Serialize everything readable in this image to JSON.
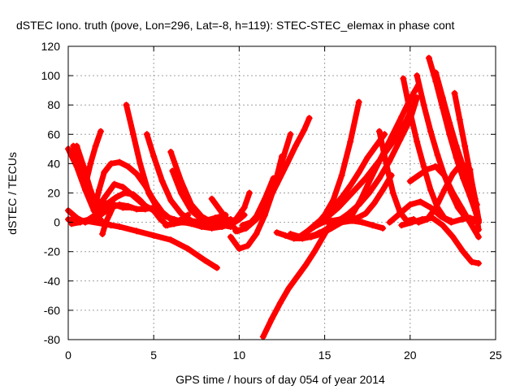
{
  "chart_data": {
    "type": "scatter",
    "title": "dSTEC Iono. truth (pove, Lon=296, Lat=-8, h=119): STEC-STEC_elemax in phase cont",
    "xlabel": "GPS time / hours of day 054 of year 2014",
    "ylabel": "dSTEC  / TECUs",
    "xlim": [
      0,
      25
    ],
    "ylim": [
      -80,
      120
    ],
    "xticks": [
      0,
      5,
      10,
      15,
      20,
      25
    ],
    "yticks": [
      -80,
      -60,
      -40,
      -20,
      0,
      20,
      40,
      60,
      80,
      100,
      120
    ],
    "grid": true,
    "marker": "plus",
    "color": "#ff0000",
    "series": [
      {
        "x": [
          0.0,
          0.5,
          1.0,
          1.5,
          2.0,
          2.5
        ],
        "y": [
          50,
          38,
          22,
          8,
          0,
          -2
        ]
      },
      {
        "x": [
          0.2,
          0.7,
          1.2,
          1.7,
          2.2,
          2.8,
          3.3,
          3.8,
          4.2,
          4.6
        ],
        "y": [
          -1,
          0,
          2,
          6,
          12,
          17,
          20,
          19,
          15,
          10
        ]
      },
      {
        "x": [
          0.3,
          0.6,
          0.9,
          1.2,
          1.5,
          1.8,
          2.2,
          2.7,
          3.2,
          3.7
        ],
        "y": [
          52,
          40,
          28,
          20,
          15,
          14,
          13,
          12,
          10,
          10
        ]
      },
      {
        "x": [
          0.0,
          0.5,
          1.0,
          1.5,
          2.0,
          2.5,
          3.0,
          3.5,
          4.0,
          4.5,
          5.0
        ],
        "y": [
          8,
          3,
          0,
          2,
          6,
          10,
          12,
          11,
          9,
          9,
          10
        ]
      },
      {
        "x": [
          0.0,
          1.0,
          2.0,
          3.0,
          4.0,
          5.0,
          6.0,
          7.0,
          8.0,
          8.7
        ],
        "y": [
          2,
          1,
          -1,
          -3,
          -6,
          -9,
          -12,
          -18,
          -26,
          -31
        ]
      },
      {
        "x": [
          0.5,
          0.9,
          1.3,
          1.7,
          2.2,
          2.7,
          3.2,
          3.8,
          4.4,
          5.0
        ],
        "y": [
          52,
          38,
          22,
          10,
          18,
          26,
          24,
          18,
          12,
          8
        ]
      },
      {
        "x": [
          1.0,
          1.3,
          1.6,
          1.9
        ],
        "y": [
          25,
          40,
          52,
          62
        ]
      },
      {
        "x": [
          1.5,
          1.8,
          2.1,
          2.5,
          3.0,
          3.5,
          4.0,
          4.5,
          5.0,
          5.5,
          6.0,
          6.5
        ],
        "y": [
          8,
          22,
          34,
          40,
          41,
          38,
          33,
          25,
          15,
          7,
          2,
          0
        ]
      },
      {
        "x": [
          2.0,
          2.2,
          2.4,
          2.6
        ],
        "y": [
          -8,
          0,
          5,
          10
        ]
      },
      {
        "x": [
          3.4,
          3.8,
          4.2,
          4.7,
          5.2,
          5.7,
          6.2,
          6.8,
          7.4,
          8.0,
          8.6,
          9.2
        ],
        "y": [
          80,
          60,
          40,
          20,
          10,
          4,
          2,
          0,
          0,
          1,
          3,
          5
        ]
      },
      {
        "x": [
          4.6,
          5.0,
          5.5,
          6.0,
          6.6,
          7.2,
          7.8,
          8.4,
          9.0,
          9.5
        ],
        "y": [
          60,
          45,
          28,
          15,
          6,
          1,
          0,
          0,
          1,
          2
        ]
      },
      {
        "x": [
          5.0,
          5.4,
          5.8,
          6.2,
          6.6,
          7.0
        ],
        "y": [
          8,
          2,
          -2,
          -1,
          2,
          5
        ]
      },
      {
        "x": [
          6.0,
          6.6,
          7.2,
          7.8,
          8.4,
          9.0,
          9.5
        ],
        "y": [
          48,
          28,
          12,
          4,
          0,
          -2,
          -3
        ]
      },
      {
        "x": [
          5.7,
          6.2,
          6.7,
          7.2,
          7.8,
          8.4,
          9.0,
          9.6,
          10.0,
          10.3
        ],
        "y": [
          -2,
          -1,
          0,
          -1,
          -3,
          -4,
          -3,
          -1,
          2,
          5
        ]
      },
      {
        "x": [
          6.1,
          6.6,
          7.2,
          7.8,
          8.5,
          9.2,
          9.8,
          10.3,
          10.6
        ],
        "y": [
          35,
          20,
          8,
          2,
          -1,
          -1,
          2,
          10,
          20
        ]
      },
      {
        "x": [
          8.4,
          8.9,
          9.4,
          9.9,
          10.4,
          11.0,
          11.5,
          12.0
        ],
        "y": [
          16,
          8,
          0,
          -6,
          -4,
          4,
          16,
          30
        ]
      },
      {
        "x": [
          9.5,
          10.0,
          10.5,
          11.0,
          11.5,
          12.0,
          12.5
        ],
        "y": [
          -10,
          -18,
          -16,
          -8,
          5,
          22,
          45
        ]
      },
      {
        "x": [
          10.2,
          10.7,
          11.2,
          11.7,
          12.2,
          12.6,
          13.0
        ],
        "y": [
          -2,
          0,
          6,
          16,
          30,
          45,
          60
        ]
      },
      {
        "x": [
          9.8,
          10.4,
          11.0,
          11.6,
          12.2,
          12.8,
          13.3,
          13.8,
          14.1
        ],
        "y": [
          -6,
          -4,
          2,
          12,
          26,
          40,
          52,
          63,
          71
        ]
      },
      {
        "x": [
          11.4,
          11.9,
          12.4,
          12.9,
          13.4,
          13.9,
          14.4,
          14.9,
          15.3
        ],
        "y": [
          -78,
          -66,
          -55,
          -45,
          -37,
          -29,
          -20,
          -10,
          -2
        ]
      },
      {
        "x": [
          12.2,
          12.7,
          13.2,
          13.7,
          14.2,
          14.7
        ],
        "y": [
          -7,
          -9,
          -11,
          -11,
          -10,
          -7
        ]
      },
      {
        "x": [
          13.0,
          13.6,
          14.2,
          14.8,
          15.4,
          16.0,
          16.6,
          17.2,
          17.8,
          18.4
        ],
        "y": [
          -8,
          -10,
          -10,
          -8,
          -4,
          0,
          1,
          0,
          -2,
          -4
        ]
      },
      {
        "x": [
          14.5,
          15.0,
          15.5,
          16.0,
          16.5,
          17.0
        ],
        "y": [
          -2,
          5,
          15,
          32,
          55,
          82
        ]
      },
      {
        "x": [
          13.9,
          14.4,
          14.9,
          15.4,
          15.9,
          16.4,
          16.9,
          17.4,
          17.9,
          18.4,
          18.9
        ],
        "y": [
          -7,
          -3,
          0,
          1,
          2,
          2,
          3,
          6,
          13,
          22,
          32
        ]
      },
      {
        "x": [
          14.0,
          14.6,
          15.2,
          15.8,
          16.4,
          17.0,
          17.6,
          18.2,
          18.8,
          19.4,
          20.0,
          20.4
        ],
        "y": [
          -10,
          -8,
          -4,
          1,
          6,
          12,
          20,
          30,
          42,
          56,
          70,
          85
        ]
      },
      {
        "x": [
          13.5,
          14.0,
          14.5,
          15.0,
          15.5,
          16.0,
          16.5,
          17.0,
          17.5,
          18.0,
          18.5
        ],
        "y": [
          -10,
          -6,
          -1,
          4,
          10,
          17,
          25,
          34,
          44,
          52,
          60
        ]
      },
      {
        "x": [
          15.0,
          15.8,
          16.6,
          17.4,
          18.2,
          19.0,
          19.8,
          20.4
        ],
        "y": [
          2,
          10,
          20,
          30,
          42,
          55,
          70,
          85
        ]
      },
      {
        "x": [
          16.5,
          17.1,
          17.7,
          18.3,
          18.9,
          19.5,
          20.0,
          20.5
        ],
        "y": [
          3,
          15,
          30,
          44,
          58,
          72,
          84,
          94
        ]
      },
      {
        "x": [
          18.2,
          18.6,
          19.0,
          19.4,
          19.8,
          20.2
        ],
        "y": [
          62,
          40,
          20,
          7,
          1,
          2
        ]
      },
      {
        "x": [
          19.6,
          20.0,
          20.4,
          20.8,
          21.2,
          21.6,
          22.0,
          22.4
        ],
        "y": [
          98,
          75,
          55,
          38,
          22,
          10,
          3,
          1
        ]
      },
      {
        "x": [
          20.4,
          20.8,
          21.2,
          21.6,
          22.0,
          22.4,
          22.8,
          23.2,
          23.6,
          24.0
        ],
        "y": [
          100,
          80,
          62,
          46,
          32,
          20,
          10,
          4,
          1,
          0
        ]
      },
      {
        "x": [
          21.1,
          21.5,
          21.9,
          22.3,
          22.7,
          23.1,
          23.5,
          23.8,
          24.0
        ],
        "y": [
          112,
          96,
          78,
          60,
          44,
          30,
          18,
          8,
          0
        ]
      },
      {
        "x": [
          21.5,
          21.9,
          22.3,
          22.7,
          23.1,
          23.5,
          23.9
        ],
        "y": [
          102,
          85,
          68,
          52,
          38,
          24,
          12
        ]
      },
      {
        "x": [
          22.6,
          22.9,
          23.2,
          23.5,
          23.8,
          24.0
        ],
        "y": [
          88,
          70,
          52,
          34,
          16,
          2
        ]
      },
      {
        "x": [
          18.8,
          19.4,
          20.0,
          20.6,
          21.2,
          21.8,
          22.4,
          23.0,
          23.5,
          24.0
        ],
        "y": [
          0,
          6,
          12,
          14,
          10,
          4,
          0,
          2,
          3,
          1
        ]
      },
      {
        "x": [
          19.5,
          20.1,
          20.7,
          21.3,
          21.9,
          22.5,
          23.1,
          23.6,
          24.0
        ],
        "y": [
          -2,
          0,
          2,
          3,
          -2,
          -10,
          -20,
          -27,
          -28
        ]
      },
      {
        "x": [
          20.0,
          20.5,
          21.0,
          21.5,
          22.0,
          22.5,
          23.0,
          23.5,
          24.0
        ],
        "y": [
          28,
          32,
          36,
          38,
          32,
          20,
          10,
          0,
          -10
        ]
      },
      {
        "x": [
          20.5,
          21.0,
          21.5,
          22.0,
          22.5,
          23.0,
          23.5,
          24.0
        ],
        "y": [
          0,
          2,
          10,
          22,
          33,
          40,
          36,
          -5
        ]
      }
    ]
  }
}
